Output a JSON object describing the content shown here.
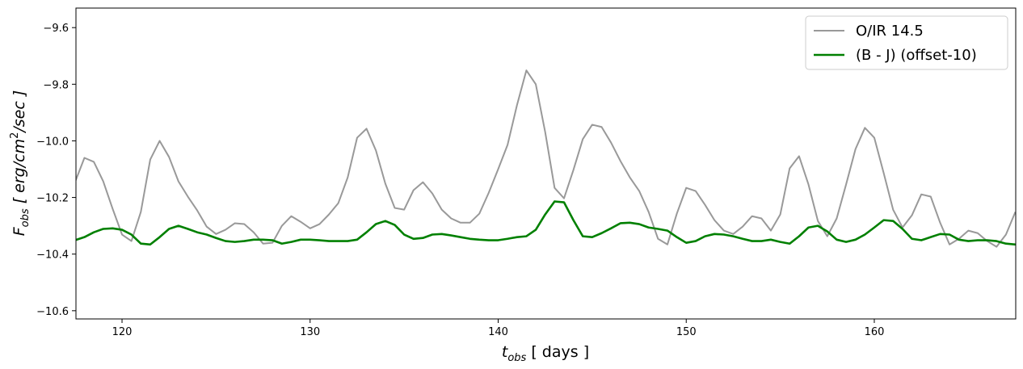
{
  "chart_data": {
    "type": "line",
    "xlabel": {
      "main": "t",
      "sub": "obs",
      "rest": " [ days ]"
    },
    "ylabel": {
      "main": "F",
      "sub": "obs",
      "mid": " [ erg/cm",
      "sup": "2",
      "rest": "/sec ]"
    },
    "xlim": [
      117.55,
      167.52
    ],
    "ylim": [
      -10.629,
      -9.531
    ],
    "xticks": [
      120,
      130,
      140,
      150,
      160
    ],
    "yticks": [
      {
        "value": -9.6,
        "label": "−9.6"
      },
      {
        "value": -9.8,
        "label": "−9.8"
      },
      {
        "value": -10.0,
        "label": "−10.0"
      },
      {
        "value": -10.2,
        "label": "−10.2"
      },
      {
        "value": -10.4,
        "label": "−10.4"
      },
      {
        "value": -10.6,
        "label": "−10.6"
      }
    ],
    "legend": "upper right",
    "x": [
      117.5,
      118,
      118.5,
      119,
      119.5,
      120,
      120.5,
      121,
      121.5,
      122,
      122.5,
      123,
      123.5,
      124,
      124.5,
      125,
      125.5,
      126,
      126.5,
      127,
      127.5,
      128,
      128.5,
      129,
      129.5,
      130,
      130.5,
      131,
      131.5,
      132,
      132.5,
      133,
      133.5,
      134,
      134.5,
      135,
      135.5,
      136,
      136.5,
      137,
      137.5,
      138,
      138.5,
      139,
      139.5,
      140,
      140.5,
      141,
      141.5,
      142,
      142.5,
      143,
      143.5,
      144,
      144.5,
      145,
      145.5,
      146,
      146.5,
      147,
      147.5,
      148,
      148.5,
      149,
      149.5,
      150,
      150.5,
      151,
      151.5,
      152,
      152.5,
      153,
      153.5,
      154,
      154.5,
      155,
      155.5,
      156,
      156.5,
      157,
      157.5,
      158,
      158.5,
      159,
      159.5,
      160,
      160.5,
      161,
      161.5,
      162,
      162.5,
      163,
      163.5,
      164,
      164.5,
      165,
      165.5,
      166,
      166.5,
      167,
      167.5
    ],
    "series": [
      {
        "name": "O/IR 14.5",
        "color": "#999999",
        "width": 2,
        "values": [
          -10.146,
          -10.06,
          -10.074,
          -10.143,
          -10.24,
          -10.331,
          -10.354,
          -10.251,
          -10.066,
          -10.0,
          -10.057,
          -10.143,
          -10.197,
          -10.246,
          -10.303,
          -10.329,
          -10.314,
          -10.291,
          -10.294,
          -10.323,
          -10.363,
          -10.36,
          -10.3,
          -10.266,
          -10.286,
          -10.309,
          -10.294,
          -10.26,
          -10.22,
          -10.129,
          -9.989,
          -9.957,
          -10.034,
          -10.151,
          -10.237,
          -10.243,
          -10.174,
          -10.146,
          -10.186,
          -10.243,
          -10.274,
          -10.289,
          -10.289,
          -10.257,
          -10.183,
          -10.1,
          -10.014,
          -9.874,
          -9.751,
          -9.8,
          -9.969,
          -10.166,
          -10.203,
          -10.103,
          -9.994,
          -9.943,
          -9.951,
          -10.006,
          -10.071,
          -10.129,
          -10.177,
          -10.251,
          -10.346,
          -10.366,
          -10.257,
          -10.166,
          -10.177,
          -10.226,
          -10.28,
          -10.317,
          -10.329,
          -10.303,
          -10.266,
          -10.274,
          -10.317,
          -10.26,
          -10.097,
          -10.054,
          -10.154,
          -10.283,
          -10.337,
          -10.274,
          -10.154,
          -10.029,
          -9.954,
          -9.989,
          -10.114,
          -10.243,
          -10.306,
          -10.263,
          -10.189,
          -10.197,
          -10.289,
          -10.366,
          -10.346,
          -10.317,
          -10.326,
          -10.354,
          -10.374,
          -10.331,
          -10.251
        ]
      },
      {
        "name": "(B - J)  (offset-10)",
        "color": "#008000",
        "width": 2.6,
        "values": [
          -10.351,
          -10.34,
          -10.323,
          -10.311,
          -10.309,
          -10.314,
          -10.331,
          -10.363,
          -10.366,
          -10.34,
          -10.311,
          -10.3,
          -10.311,
          -10.323,
          -10.331,
          -10.343,
          -10.354,
          -10.357,
          -10.354,
          -10.349,
          -10.349,
          -10.351,
          -10.363,
          -10.357,
          -10.349,
          -10.349,
          -10.351,
          -10.354,
          -10.354,
          -10.354,
          -10.349,
          -10.323,
          -10.294,
          -10.283,
          -10.297,
          -10.331,
          -10.346,
          -10.343,
          -10.331,
          -10.329,
          -10.334,
          -10.34,
          -10.346,
          -10.349,
          -10.351,
          -10.351,
          -10.346,
          -10.34,
          -10.337,
          -10.314,
          -10.26,
          -10.214,
          -10.217,
          -10.28,
          -10.337,
          -10.34,
          -10.326,
          -10.309,
          -10.291,
          -10.289,
          -10.294,
          -10.306,
          -10.311,
          -10.317,
          -10.34,
          -10.36,
          -10.354,
          -10.337,
          -10.329,
          -10.331,
          -10.337,
          -10.346,
          -10.354,
          -10.354,
          -10.349,
          -10.357,
          -10.363,
          -10.337,
          -10.306,
          -10.3,
          -10.32,
          -10.349,
          -10.357,
          -10.349,
          -10.331,
          -10.306,
          -10.28,
          -10.283,
          -10.311,
          -10.346,
          -10.351,
          -10.34,
          -10.329,
          -10.331,
          -10.349,
          -10.354,
          -10.351,
          -10.351,
          -10.354,
          -10.363,
          -10.366
        ]
      }
    ]
  }
}
